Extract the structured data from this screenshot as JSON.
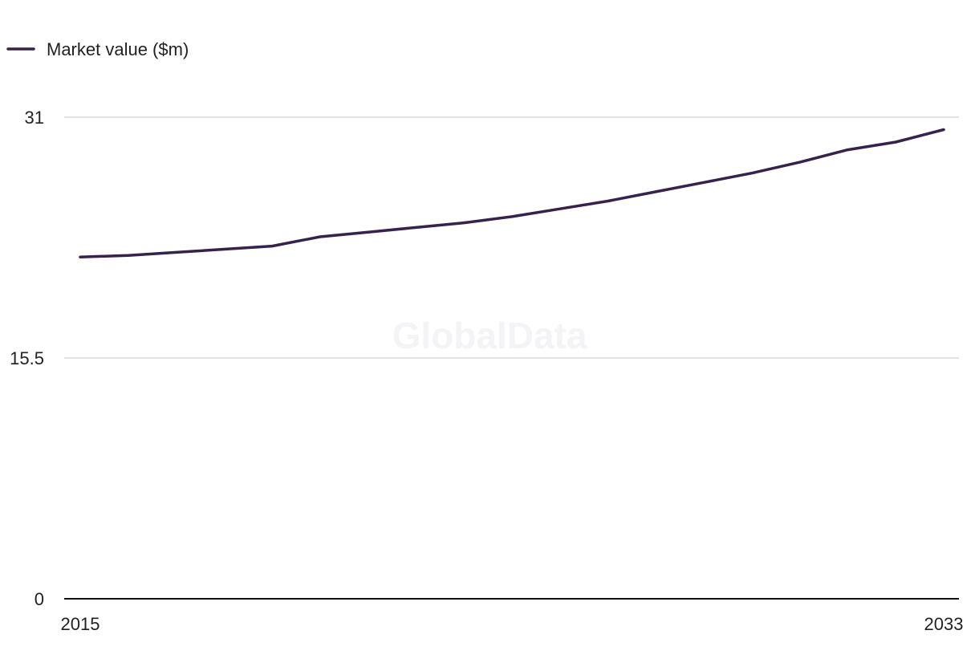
{
  "watermark": "GlobalData",
  "legend": {
    "label": "Market value ($m)"
  },
  "colors": {
    "series": "#35224f",
    "grid": "#d9d9d9",
    "baseline": "#111111",
    "text": "#222222"
  },
  "chart_data": {
    "type": "line",
    "title": "",
    "xlabel": "",
    "ylabel": "",
    "x": [
      2015,
      2016,
      2017,
      2018,
      2019,
      2020,
      2021,
      2022,
      2023,
      2024,
      2025,
      2026,
      2027,
      2028,
      2029,
      2030,
      2031,
      2032,
      2033
    ],
    "series": [
      {
        "name": "Market value ($m)",
        "values": [
          22.0,
          22.1,
          22.3,
          22.5,
          22.7,
          23.3,
          23.6,
          23.9,
          24.2,
          24.6,
          25.1,
          25.6,
          26.2,
          26.8,
          27.4,
          28.1,
          28.9,
          29.4,
          30.2
        ]
      }
    ],
    "xlim": [
      2015,
      2033
    ],
    "ylim": [
      0,
      31
    ],
    "yticks": [
      "0",
      "15.5",
      "31"
    ],
    "xticks": [
      "2015",
      "2033"
    ],
    "grid": true,
    "legend_position": "top-left"
  }
}
